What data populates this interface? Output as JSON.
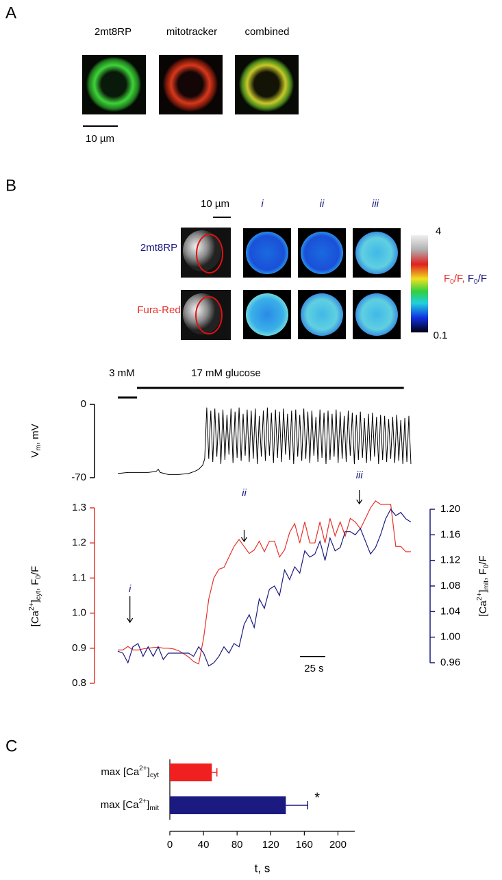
{
  "panels": {
    "a": {
      "letter": "A",
      "labels": [
        "2mt8RP",
        "mitotracker",
        "combined"
      ],
      "scale_bar": "10 µm"
    },
    "b": {
      "letter": "B",
      "scale_bar": "10 µm",
      "columns": [
        "i",
        "ii",
        "iii"
      ],
      "rows": [
        "2mt8RP",
        "Fura-Red"
      ],
      "colorbar": {
        "max": "4",
        "min": "0.1",
        "label": [
          {
            "text": "F",
            "color": "#e8302a"
          },
          {
            "text": "0",
            "shift": "sub",
            "color": "#e8302a"
          },
          {
            "text": "/F, ",
            "color": "#e8302a"
          },
          {
            "text": "F",
            "color": "#1a1a80"
          },
          {
            "text": "0",
            "shift": "sub",
            "color": "#1a1a80"
          },
          {
            "text": "/F",
            "color": "#1a1a80"
          }
        ]
      }
    },
    "c": {
      "letter": "C"
    }
  },
  "chart_data": [
    {
      "type": "line",
      "ylabel": [
        {
          "text": "V"
        },
        {
          "text": "m",
          "shift": "sub"
        },
        {
          "text": ", mV"
        }
      ],
      "stimuli": [
        {
          "label": "3 mM",
          "start": 0,
          "end": 19
        },
        {
          "label": "17 mM glucose",
          "start": 19,
          "end": 283
        }
      ],
      "xlim": [
        0,
        290
      ],
      "ylim": [
        -70,
        0
      ],
      "yticks": [
        0,
        -70
      ],
      "x": [
        0,
        10,
        20,
        30,
        38,
        40,
        42,
        50,
        60,
        70,
        76,
        80,
        84,
        86,
        88,
        90,
        92,
        94,
        96,
        98,
        100,
        102,
        104,
        106,
        108,
        110,
        112,
        114,
        116,
        118,
        120,
        122,
        124,
        126,
        128,
        130,
        132,
        134,
        136,
        138,
        140,
        142,
        144,
        146,
        148,
        150,
        152,
        154,
        156,
        158,
        160,
        162,
        164,
        166,
        168,
        170,
        172,
        174,
        176,
        178,
        180,
        182,
        184,
        186,
        188,
        190,
        192,
        194,
        196,
        198,
        200,
        202,
        204,
        206,
        208,
        210,
        212,
        214,
        216,
        218,
        220,
        222,
        224,
        226,
        228,
        230,
        232,
        234,
        236,
        238,
        240,
        242,
        244,
        246,
        248,
        250,
        252,
        254,
        256,
        258,
        260,
        262,
        264,
        266,
        268,
        270,
        272,
        274,
        276,
        278,
        280,
        282,
        284,
        286,
        288,
        290
      ],
      "series": [
        {
          "color": "#000000",
          "values": [
            -66,
            -65,
            -65,
            -65,
            -64,
            -62,
            -65,
            -67,
            -67,
            -66,
            -64,
            -62,
            -58,
            -52,
            -3,
            -52,
            -6,
            -55,
            -4,
            -50,
            -8,
            -57,
            -5,
            -53,
            -10,
            -48,
            -4,
            -56,
            -7,
            -51,
            -3,
            -54,
            -9,
            -49,
            -5,
            -55,
            -6,
            -52,
            -4,
            -57,
            -11,
            -50,
            -6,
            -54,
            -3,
            -49,
            -8,
            -56,
            -5,
            -51,
            -7,
            -55,
            -4,
            -48,
            -9,
            -53,
            -6,
            -57,
            -5,
            -50,
            -10,
            -54,
            -4,
            -52,
            -7,
            -56,
            -6,
            -49,
            -12,
            -55,
            -5,
            -51,
            -8,
            -57,
            -6,
            -53,
            -9,
            -50,
            -5,
            -56,
            -7,
            -52,
            -11,
            -55,
            -6,
            -49,
            -8,
            -57,
            -10,
            -53,
            -7,
            -51,
            -13,
            -56,
            -9,
            -54,
            -8,
            -50,
            -12,
            -57,
            -10,
            -53,
            -11,
            -55,
            -14,
            -52,
            -12,
            -56,
            -10,
            -54,
            -15,
            -57,
            -13,
            -55,
            -11,
            -57
          ]
        }
      ]
    },
    {
      "type": "line",
      "ylabel": [
        {
          "text": "[Ca"
        },
        {
          "text": "2+",
          "shift": "super"
        },
        {
          "text": "]"
        },
        {
          "text": "cyt",
          "shift": "sub"
        },
        {
          "text": ", F"
        },
        {
          "text": "0",
          "shift": "sub"
        },
        {
          "text": "/F"
        }
      ],
      "y2label": [
        {
          "text": "[Ca"
        },
        {
          "text": "2+",
          "shift": "super"
        },
        {
          "text": "]"
        },
        {
          "text": "mit",
          "shift": "sub"
        },
        {
          "text": ", F"
        },
        {
          "text": "0",
          "shift": "sub"
        },
        {
          "text": "/F"
        }
      ],
      "xlim": [
        0,
        290
      ],
      "ylim": [
        0.8,
        1.3
      ],
      "yticks": [
        0.8,
        0.9,
        {
          "value": 1,
          "label": "1.0"
        },
        1.1,
        1.2,
        1.3
      ],
      "y2lim": [
        0.96,
        1.2
      ],
      "y2ticks": [
        0.96,
        {
          "value": 1,
          "label": "1.00"
        },
        1.04,
        1.08,
        1.12,
        1.16,
        {
          "value": 1.2,
          "label": "1.20"
        }
      ],
      "annotations": [
        {
          "label": "i",
          "x": 12
        },
        {
          "label": "ii",
          "x": 125
        },
        {
          "label": "iii",
          "x": 239
        }
      ],
      "scale_bar": {
        "label": "25 s",
        "length": 25
      },
      "x": [
        0,
        5,
        10,
        15,
        20,
        25,
        30,
        35,
        40,
        45,
        50,
        55,
        60,
        65,
        70,
        75,
        80,
        85,
        90,
        95,
        100,
        105,
        110,
        115,
        120,
        125,
        130,
        135,
        140,
        145,
        150,
        155,
        160,
        165,
        170,
        175,
        180,
        185,
        190,
        195,
        200,
        205,
        210,
        215,
        220,
        225,
        230,
        235,
        240,
        245,
        250,
        255,
        260,
        265,
        270,
        275,
        280,
        285,
        290
      ],
      "series": [
        {
          "color": "#e8302a",
          "axis": "y",
          "values": [
            0.895,
            0.895,
            0.905,
            0.895,
            0.895,
            0.898,
            0.9,
            0.902,
            0.903,
            0.9,
            0.9,
            0.898,
            0.893,
            0.885,
            0.875,
            0.862,
            0.855,
            0.93,
            1.04,
            1.1,
            1.125,
            1.13,
            1.16,
            1.19,
            1.21,
            1.19,
            1.17,
            1.18,
            1.205,
            1.175,
            1.205,
            1.205,
            1.16,
            1.18,
            1.23,
            1.255,
            1.2,
            1.26,
            1.2,
            1.2,
            1.26,
            1.2,
            1.27,
            1.22,
            1.26,
            1.22,
            1.27,
            1.26,
            1.24,
            1.27,
            1.3,
            1.32,
            1.31,
            1.31,
            1.31,
            1.19,
            1.19,
            1.175,
            1.175
          ]
        },
        {
          "color": "#1a1a80",
          "axis": "y2",
          "values": [
            0.978,
            0.975,
            0.96,
            0.985,
            0.99,
            0.97,
            0.985,
            0.97,
            0.985,
            0.965,
            0.975,
            0.975,
            0.975,
            0.975,
            0.975,
            0.97,
            0.985,
            0.975,
            0.955,
            0.96,
            0.97,
            0.985,
            0.975,
            0.99,
            0.985,
            1.02,
            1.035,
            1.015,
            1.06,
            1.045,
            1.075,
            1.08,
            1.065,
            1.105,
            1.09,
            1.11,
            1.1,
            1.135,
            1.125,
            1.13,
            1.15,
            1.12,
            1.155,
            1.135,
            1.14,
            1.165,
            1.165,
            1.16,
            1.17,
            1.15,
            1.13,
            1.14,
            1.16,
            1.185,
            1.2,
            1.19,
            1.195,
            1.185,
            1.18
          ]
        }
      ]
    },
    {
      "type": "hbar",
      "categories": [
        [
          {
            "text": "max [Ca"
          },
          {
            "text": "2+",
            "shift": "super"
          },
          {
            "text": "]"
          },
          {
            "text": "cyt",
            "shift": "sub"
          }
        ],
        [
          {
            "text": "max [Ca"
          },
          {
            "text": "2+",
            "shift": "super"
          },
          {
            "text": "]"
          },
          {
            "text": "mit",
            "shift": "sub"
          }
        ]
      ],
      "values": [
        50,
        138
      ],
      "errors": [
        6,
        26
      ],
      "colors": [
        "#f02020",
        "#1a1a80"
      ],
      "annotations": [
        {
          "label": "*",
          "index": 1
        }
      ],
      "xlim": [
        0,
        220
      ],
      "xticks": [
        0,
        40,
        80,
        120,
        160,
        200
      ],
      "xlabel": "t, s"
    }
  ]
}
